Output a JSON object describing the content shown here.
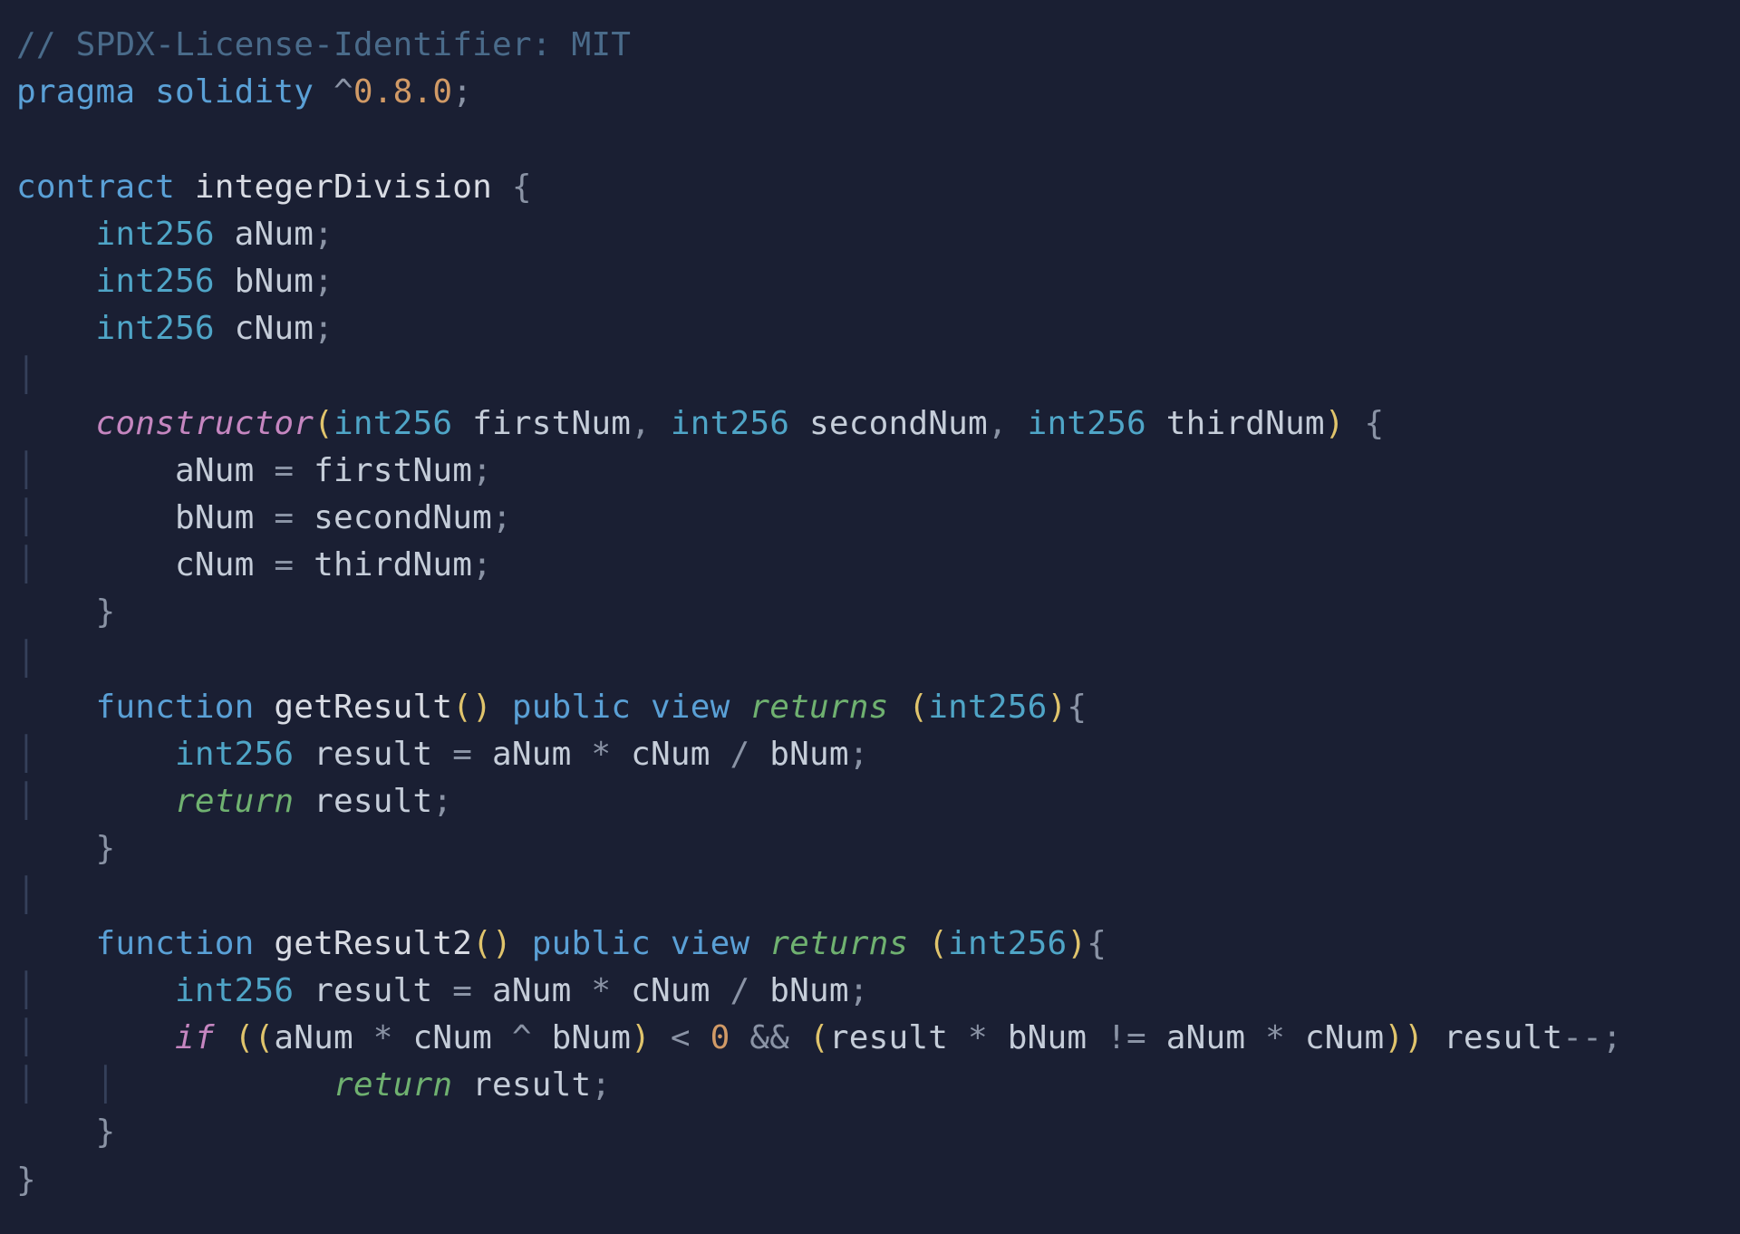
{
  "language": "solidity",
  "theme": {
    "bg": "#1a1f33",
    "fg": "#c5cdd9",
    "comment": "#4a6b8a",
    "keyword": "#5aa0d6",
    "keywordEm": "#c586c0",
    "control": "#6fb170",
    "type": "#4fa5c7",
    "func": "#d8dbe3",
    "ident": "#c5cdd9",
    "number": "#d19a66",
    "punct": "#8a93a5",
    "paren": "#e0c46c",
    "indent": "#35405a",
    "fontSizePx": 36,
    "lineHeight": 1.45
  },
  "code": {
    "indentUnit": "    ",
    "lines": [
      {
        "indent": 0,
        "guide": 0,
        "tokens": [
          {
            "cls": "comment",
            "t": "// SPDX-License-Identifier: MIT"
          }
        ]
      },
      {
        "indent": 0,
        "guide": 0,
        "tokens": [
          {
            "cls": "keyword",
            "t": "pragma"
          },
          {
            "cls": "",
            "t": " "
          },
          {
            "cls": "keyword",
            "t": "solidity"
          },
          {
            "cls": "",
            "t": " "
          },
          {
            "cls": "punct",
            "t": "^"
          },
          {
            "cls": "number",
            "t": "0.8.0"
          },
          {
            "cls": "punct",
            "t": ";"
          }
        ]
      },
      {
        "indent": 0,
        "guide": 0,
        "blank": true
      },
      {
        "indent": 0,
        "guide": 0,
        "tokens": [
          {
            "cls": "keyword",
            "t": "contract"
          },
          {
            "cls": "",
            "t": " "
          },
          {
            "cls": "func",
            "t": "integerDivision"
          },
          {
            "cls": "",
            "t": " "
          },
          {
            "cls": "punct",
            "t": "{"
          }
        ]
      },
      {
        "indent": 1,
        "guide": 0,
        "tokens": [
          {
            "cls": "type",
            "t": "int256"
          },
          {
            "cls": "",
            "t": " "
          },
          {
            "cls": "ident",
            "t": "aNum"
          },
          {
            "cls": "punct",
            "t": ";"
          }
        ]
      },
      {
        "indent": 1,
        "guide": 0,
        "tokens": [
          {
            "cls": "type",
            "t": "int256"
          },
          {
            "cls": "",
            "t": " "
          },
          {
            "cls": "ident",
            "t": "bNum"
          },
          {
            "cls": "punct",
            "t": ";"
          }
        ]
      },
      {
        "indent": 1,
        "guide": 0,
        "tokens": [
          {
            "cls": "type",
            "t": "int256"
          },
          {
            "cls": "",
            "t": " "
          },
          {
            "cls": "ident",
            "t": "cNum"
          },
          {
            "cls": "punct",
            "t": ";"
          }
        ]
      },
      {
        "indent": 0,
        "guide": 1,
        "blank": true
      },
      {
        "indent": 1,
        "guide": 0,
        "tokens": [
          {
            "cls": "keyword-em",
            "t": "constructor"
          },
          {
            "cls": "paren",
            "t": "("
          },
          {
            "cls": "type",
            "t": "int256"
          },
          {
            "cls": "",
            "t": " "
          },
          {
            "cls": "ident",
            "t": "firstNum"
          },
          {
            "cls": "punct",
            "t": ","
          },
          {
            "cls": "",
            "t": " "
          },
          {
            "cls": "type",
            "t": "int256"
          },
          {
            "cls": "",
            "t": " "
          },
          {
            "cls": "ident",
            "t": "secondNum"
          },
          {
            "cls": "punct",
            "t": ","
          },
          {
            "cls": "",
            "t": " "
          },
          {
            "cls": "type",
            "t": "int256"
          },
          {
            "cls": "",
            "t": " "
          },
          {
            "cls": "ident",
            "t": "thirdNum"
          },
          {
            "cls": "paren",
            "t": ")"
          },
          {
            "cls": "",
            "t": " "
          },
          {
            "cls": "punct",
            "t": "{"
          }
        ]
      },
      {
        "indent": 2,
        "guide": 1,
        "tokens": [
          {
            "cls": "ident",
            "t": "aNum"
          },
          {
            "cls": "",
            "t": " "
          },
          {
            "cls": "op",
            "t": "="
          },
          {
            "cls": "",
            "t": " "
          },
          {
            "cls": "ident",
            "t": "firstNum"
          },
          {
            "cls": "punct",
            "t": ";"
          }
        ]
      },
      {
        "indent": 2,
        "guide": 1,
        "tokens": [
          {
            "cls": "ident",
            "t": "bNum"
          },
          {
            "cls": "",
            "t": " "
          },
          {
            "cls": "op",
            "t": "="
          },
          {
            "cls": "",
            "t": " "
          },
          {
            "cls": "ident",
            "t": "secondNum"
          },
          {
            "cls": "punct",
            "t": ";"
          }
        ]
      },
      {
        "indent": 2,
        "guide": 1,
        "tokens": [
          {
            "cls": "ident",
            "t": "cNum"
          },
          {
            "cls": "",
            "t": " "
          },
          {
            "cls": "op",
            "t": "="
          },
          {
            "cls": "",
            "t": " "
          },
          {
            "cls": "ident",
            "t": "thirdNum"
          },
          {
            "cls": "punct",
            "t": ";"
          }
        ]
      },
      {
        "indent": 1,
        "guide": 0,
        "tokens": [
          {
            "cls": "punct",
            "t": "}"
          }
        ]
      },
      {
        "indent": 0,
        "guide": 1,
        "blank": true
      },
      {
        "indent": 1,
        "guide": 0,
        "tokens": [
          {
            "cls": "keyword",
            "t": "function"
          },
          {
            "cls": "",
            "t": " "
          },
          {
            "cls": "func",
            "t": "getResult"
          },
          {
            "cls": "paren",
            "t": "()"
          },
          {
            "cls": "",
            "t": " "
          },
          {
            "cls": "keyword",
            "t": "public"
          },
          {
            "cls": "",
            "t": " "
          },
          {
            "cls": "keyword",
            "t": "view"
          },
          {
            "cls": "",
            "t": " "
          },
          {
            "cls": "ctrl-em",
            "t": "returns"
          },
          {
            "cls": "",
            "t": " "
          },
          {
            "cls": "paren",
            "t": "("
          },
          {
            "cls": "type",
            "t": "int256"
          },
          {
            "cls": "paren",
            "t": ")"
          },
          {
            "cls": "punct",
            "t": "{"
          }
        ]
      },
      {
        "indent": 2,
        "guide": 1,
        "tokens": [
          {
            "cls": "type",
            "t": "int256"
          },
          {
            "cls": "",
            "t": " "
          },
          {
            "cls": "ident",
            "t": "result"
          },
          {
            "cls": "",
            "t": " "
          },
          {
            "cls": "op",
            "t": "="
          },
          {
            "cls": "",
            "t": " "
          },
          {
            "cls": "ident",
            "t": "aNum"
          },
          {
            "cls": "",
            "t": " "
          },
          {
            "cls": "op",
            "t": "*"
          },
          {
            "cls": "",
            "t": " "
          },
          {
            "cls": "ident",
            "t": "cNum"
          },
          {
            "cls": "",
            "t": " "
          },
          {
            "cls": "op",
            "t": "/"
          },
          {
            "cls": "",
            "t": " "
          },
          {
            "cls": "ident",
            "t": "bNum"
          },
          {
            "cls": "punct",
            "t": ";"
          }
        ]
      },
      {
        "indent": 2,
        "guide": 1,
        "tokens": [
          {
            "cls": "ctrl-em",
            "t": "return"
          },
          {
            "cls": "",
            "t": " "
          },
          {
            "cls": "ident",
            "t": "result"
          },
          {
            "cls": "punct",
            "t": ";"
          }
        ]
      },
      {
        "indent": 1,
        "guide": 0,
        "tokens": [
          {
            "cls": "punct",
            "t": "}"
          }
        ]
      },
      {
        "indent": 0,
        "guide": 1,
        "blank": true
      },
      {
        "indent": 1,
        "guide": 0,
        "tokens": [
          {
            "cls": "keyword",
            "t": "function"
          },
          {
            "cls": "",
            "t": " "
          },
          {
            "cls": "func",
            "t": "getResult2"
          },
          {
            "cls": "paren",
            "t": "()"
          },
          {
            "cls": "",
            "t": " "
          },
          {
            "cls": "keyword",
            "t": "public"
          },
          {
            "cls": "",
            "t": " "
          },
          {
            "cls": "keyword",
            "t": "view"
          },
          {
            "cls": "",
            "t": " "
          },
          {
            "cls": "ctrl-em",
            "t": "returns"
          },
          {
            "cls": "",
            "t": " "
          },
          {
            "cls": "paren",
            "t": "("
          },
          {
            "cls": "type",
            "t": "int256"
          },
          {
            "cls": "paren",
            "t": ")"
          },
          {
            "cls": "punct",
            "t": "{"
          }
        ]
      },
      {
        "indent": 2,
        "guide": 1,
        "tokens": [
          {
            "cls": "type",
            "t": "int256"
          },
          {
            "cls": "",
            "t": " "
          },
          {
            "cls": "ident",
            "t": "result"
          },
          {
            "cls": "",
            "t": " "
          },
          {
            "cls": "op",
            "t": "="
          },
          {
            "cls": "",
            "t": " "
          },
          {
            "cls": "ident",
            "t": "aNum"
          },
          {
            "cls": "",
            "t": " "
          },
          {
            "cls": "op",
            "t": "*"
          },
          {
            "cls": "",
            "t": " "
          },
          {
            "cls": "ident",
            "t": "cNum"
          },
          {
            "cls": "",
            "t": " "
          },
          {
            "cls": "op",
            "t": "/"
          },
          {
            "cls": "",
            "t": " "
          },
          {
            "cls": "ident",
            "t": "bNum"
          },
          {
            "cls": "punct",
            "t": ";"
          }
        ]
      },
      {
        "indent": 2,
        "guide": 1,
        "tokens": [
          {
            "cls": "keyword-em",
            "t": "if"
          },
          {
            "cls": "",
            "t": " "
          },
          {
            "cls": "paren",
            "t": "(("
          },
          {
            "cls": "ident",
            "t": "aNum"
          },
          {
            "cls": "",
            "t": " "
          },
          {
            "cls": "op",
            "t": "*"
          },
          {
            "cls": "",
            "t": " "
          },
          {
            "cls": "ident",
            "t": "cNum"
          },
          {
            "cls": "",
            "t": " "
          },
          {
            "cls": "op",
            "t": "^"
          },
          {
            "cls": "",
            "t": " "
          },
          {
            "cls": "ident",
            "t": "bNum"
          },
          {
            "cls": "paren",
            "t": ")"
          },
          {
            "cls": "",
            "t": " "
          },
          {
            "cls": "op",
            "t": "<"
          },
          {
            "cls": "",
            "t": " "
          },
          {
            "cls": "number",
            "t": "0"
          },
          {
            "cls": "",
            "t": " "
          },
          {
            "cls": "op",
            "t": "&&"
          },
          {
            "cls": "",
            "t": " "
          },
          {
            "cls": "paren",
            "t": "("
          },
          {
            "cls": "ident",
            "t": "result"
          },
          {
            "cls": "",
            "t": " "
          },
          {
            "cls": "op",
            "t": "*"
          },
          {
            "cls": "",
            "t": " "
          },
          {
            "cls": "ident",
            "t": "bNum"
          },
          {
            "cls": "",
            "t": " "
          },
          {
            "cls": "op",
            "t": "!="
          },
          {
            "cls": "",
            "t": " "
          },
          {
            "cls": "ident",
            "t": "aNum"
          },
          {
            "cls": "",
            "t": " "
          },
          {
            "cls": "op",
            "t": "*"
          },
          {
            "cls": "",
            "t": " "
          },
          {
            "cls": "ident",
            "t": "cNum"
          },
          {
            "cls": "paren",
            "t": "))"
          },
          {
            "cls": "",
            "t": " "
          },
          {
            "cls": "ident",
            "t": "result"
          },
          {
            "cls": "op",
            "t": "--"
          },
          {
            "cls": "punct",
            "t": ";"
          }
        ]
      },
      {
        "indent": 4,
        "guide": 2,
        "tokens": [
          {
            "cls": "ctrl-em",
            "t": "return"
          },
          {
            "cls": "",
            "t": " "
          },
          {
            "cls": "ident",
            "t": "result"
          },
          {
            "cls": "punct",
            "t": ";"
          }
        ]
      },
      {
        "indent": 1,
        "guide": 0,
        "tokens": [
          {
            "cls": "punct",
            "t": "}"
          }
        ]
      },
      {
        "indent": 0,
        "guide": 0,
        "tokens": [
          {
            "cls": "punct",
            "t": "}"
          }
        ]
      }
    ]
  }
}
